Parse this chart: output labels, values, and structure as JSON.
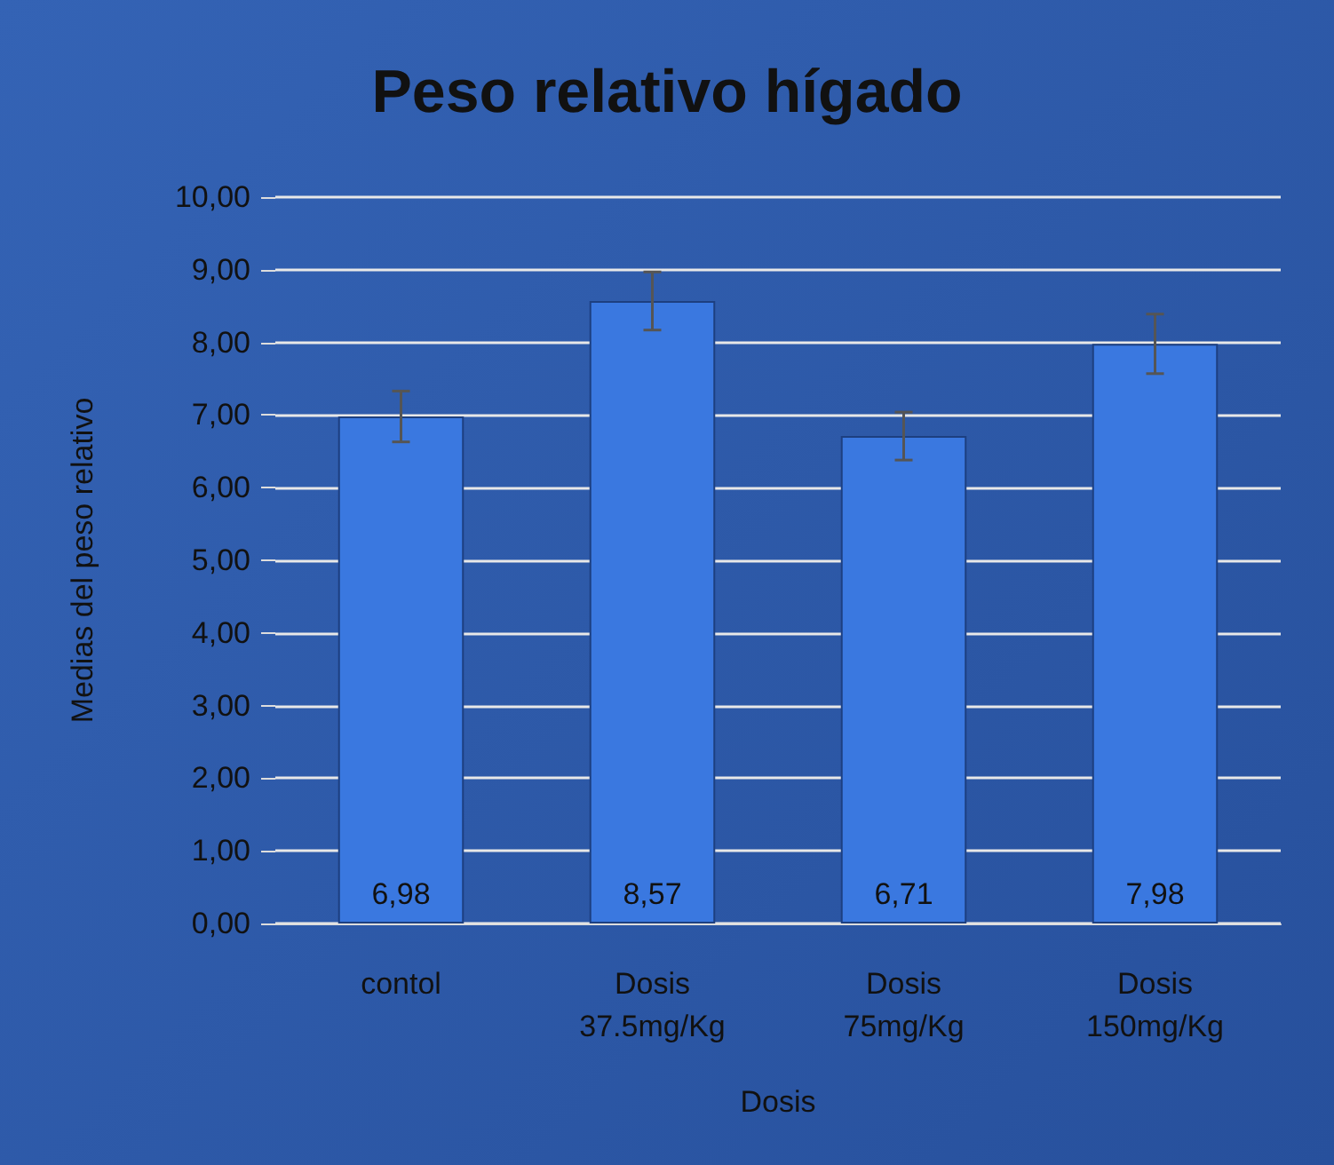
{
  "chart_data": {
    "type": "bar",
    "title": "Peso relativo hígado",
    "xlabel": "Dosis",
    "ylabel": "Medias del peso relativo",
    "categories": [
      "contol",
      "Dosis\n37.5mg/Kg",
      "Dosis\n75mg/Kg",
      "Dosis\n150mg/Kg"
    ],
    "values": [
      6.98,
      8.57,
      6.71,
      7.98
    ],
    "errors": [
      0.35,
      0.4,
      0.33,
      0.41
    ],
    "value_labels": [
      "6,98",
      "8,57",
      "6,71",
      "7,98"
    ],
    "color": "#3a78e0",
    "ylim": [
      0,
      10
    ],
    "yticks": [
      {
        "value": 0,
        "label": "0,00"
      },
      {
        "value": 1,
        "label": "1,00"
      },
      {
        "value": 2,
        "label": "2,00"
      },
      {
        "value": 3,
        "label": "3,00"
      },
      {
        "value": 4,
        "label": "4,00"
      },
      {
        "value": 5,
        "label": "5,00"
      },
      {
        "value": 6,
        "label": "6,00"
      },
      {
        "value": 7,
        "label": "7,00"
      },
      {
        "value": 8,
        "label": "8,00"
      },
      {
        "value": 9,
        "label": "9,00"
      },
      {
        "value": 10,
        "label": "10,00"
      }
    ],
    "grid": "y"
  }
}
